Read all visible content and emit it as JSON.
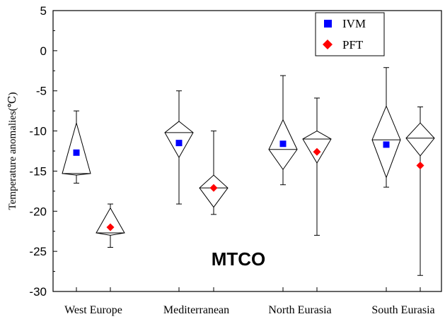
{
  "chart_data": {
    "type": "boxplot",
    "title": "MTCO",
    "ylabel": "Temperature anomalies(℃)",
    "xlabel": "",
    "ylim": [
      -30,
      5
    ],
    "yticks": [
      5,
      0,
      -5,
      -10,
      -15,
      -20,
      -25,
      -30
    ],
    "grid": false,
    "legend_position": "top-right",
    "categories": [
      "West Europe",
      "Mediterranean",
      "North Eurasia",
      "South Eurasia"
    ],
    "series": [
      {
        "name": "IVM",
        "color": "#0000ff",
        "marker": "square",
        "boxes": [
          {
            "category": "West Europe",
            "max": -7.5,
            "q3": -9.0,
            "median": -15.3,
            "q1": -15.5,
            "min": -16.5,
            "mean": -12.7
          },
          {
            "category": "Mediterranean",
            "max": -5.0,
            "q3": -8.8,
            "median": -10.2,
            "q1": -13.3,
            "min": -19.1,
            "mean": -11.5
          },
          {
            "category": "North Eurasia",
            "max": -3.1,
            "q3": -8.6,
            "median": -12.3,
            "q1": -14.8,
            "min": -16.7,
            "mean": -11.6
          },
          {
            "category": "South Eurasia",
            "max": -2.1,
            "q3": -6.9,
            "median": -11.1,
            "q1": -15.8,
            "min": -17.0,
            "mean": -11.7
          }
        ]
      },
      {
        "name": "PFT",
        "color": "#ff0000",
        "marker": "diamond",
        "boxes": [
          {
            "category": "West Europe",
            "max": -19.1,
            "q3": -19.6,
            "median": -22.7,
            "q1": -23.0,
            "min": -24.5,
            "mean": -22.0
          },
          {
            "category": "Mediterranean",
            "max": -10.0,
            "q3": -15.5,
            "median": -17.1,
            "q1": -19.5,
            "min": -20.4,
            "mean": -17.1
          },
          {
            "category": "North Eurasia",
            "max": -5.9,
            "q3": -10.0,
            "median": -11.0,
            "q1": -14.0,
            "min": -23.0,
            "mean": -12.6
          },
          {
            "category": "South Eurasia",
            "max": -7.0,
            "q3": -9.0,
            "median": -10.9,
            "q1": -13.1,
            "min": -28.0,
            "mean": -14.3
          }
        ]
      }
    ]
  }
}
